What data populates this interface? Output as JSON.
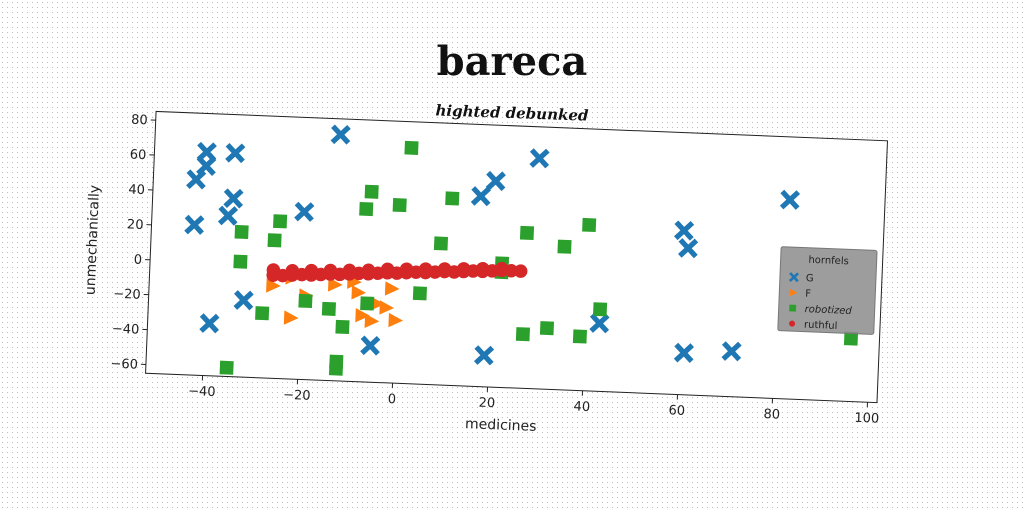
{
  "chart_data": {
    "type": "scatter",
    "title": "bareca",
    "subtitle": "highted debunked",
    "xlabel": "medicines",
    "ylabel": "unmechanically",
    "xlim": [
      -52,
      102
    ],
    "ylim": [
      -65,
      85
    ],
    "x_ticks": [
      -40,
      -20,
      0,
      20,
      40,
      60,
      80,
      100
    ],
    "y_ticks": [
      -60,
      -40,
      -20,
      0,
      20,
      40,
      60,
      80
    ],
    "grid": false,
    "legend": {
      "title": "hornfels",
      "placement": "right"
    },
    "series": [
      {
        "name": "G",
        "color": "#1f77b4",
        "marker": "x",
        "points": [
          [
            -41,
            63
          ],
          [
            -41,
            55
          ],
          [
            -43,
            47
          ],
          [
            -35,
            63
          ],
          [
            -35,
            37
          ],
          [
            -36,
            27
          ],
          [
            -43,
            21
          ],
          [
            -13,
            76
          ],
          [
            -20,
            31
          ],
          [
            -32,
            -21
          ],
          [
            -39,
            -35
          ],
          [
            -5,
            -44
          ],
          [
            29,
            67
          ],
          [
            20,
            53
          ],
          [
            17,
            44
          ],
          [
            43,
            -26
          ],
          [
            19,
            -47
          ],
          [
            60,
            29
          ],
          [
            61,
            19
          ],
          [
            61,
            -41
          ],
          [
            71,
            -39
          ],
          [
            82,
            49
          ]
        ]
      },
      {
        "name": "F",
        "color": "#ff7f0e",
        "marker": "triangle",
        "points": [
          [
            -26,
            -12
          ],
          [
            -22,
            -7
          ],
          [
            -19,
            -17
          ],
          [
            -22,
            -30
          ],
          [
            -13,
            -10
          ],
          [
            -9,
            -8
          ],
          [
            -8,
            -14
          ],
          [
            -7,
            -27
          ],
          [
            -5,
            -30
          ],
          [
            -4,
            -20
          ],
          [
            -2,
            -22
          ],
          [
            -1,
            -11
          ],
          [
            0,
            -29
          ]
        ]
      },
      {
        "name": "robotized",
        "color": "#2ca02c",
        "marker": "square",
        "points": [
          [
            2,
            70
          ],
          [
            -6,
            44
          ],
          [
            -7,
            34
          ],
          [
            0,
            37
          ],
          [
            11,
            42
          ],
          [
            -33,
            18
          ],
          [
            -25,
            25
          ],
          [
            -26,
            14
          ],
          [
            -33,
            1
          ],
          [
            -28,
            -28
          ],
          [
            -19,
            -20
          ],
          [
            -14,
            -24
          ],
          [
            -11,
            -34
          ],
          [
            -12,
            -54
          ],
          [
            -12,
            -58
          ],
          [
            -35,
            -60
          ],
          [
            -6,
            -20
          ],
          [
            5,
            -13
          ],
          [
            9,
            16
          ],
          [
            22,
            6
          ],
          [
            22,
            1
          ],
          [
            27,
            24
          ],
          [
            35,
            17
          ],
          [
            40,
            30
          ],
          [
            43,
            -18
          ],
          [
            27,
            -34
          ],
          [
            32,
            -30
          ],
          [
            39,
            -34
          ],
          [
            96,
            -29
          ]
        ]
      },
      {
        "name": "ruthful",
        "color": "#d62728",
        "marker": "circle",
        "points": [
          [
            -26,
            -6
          ],
          [
            -24,
            -6
          ],
          [
            -22,
            -5.5
          ],
          [
            -20,
            -5
          ],
          [
            -18,
            -5
          ],
          [
            -16,
            -4.5
          ],
          [
            -14,
            -4
          ],
          [
            -12,
            -4
          ],
          [
            -10,
            -3.5
          ],
          [
            -8,
            -3
          ],
          [
            -6,
            -3
          ],
          [
            -4,
            -2.5
          ],
          [
            -2,
            -2
          ],
          [
            0,
            -2
          ],
          [
            2,
            -1.5
          ],
          [
            4,
            -1
          ],
          [
            6,
            -1
          ],
          [
            8,
            -0.5
          ],
          [
            10,
            0
          ],
          [
            12,
            0
          ],
          [
            14,
            0.5
          ],
          [
            16,
            1
          ],
          [
            18,
            1
          ],
          [
            20,
            1.5
          ],
          [
            22,
            2
          ],
          [
            24,
            2
          ],
          [
            26,
            2
          ],
          [
            -26,
            -3
          ],
          [
            -22,
            -3
          ],
          [
            -18,
            -2.5
          ],
          [
            -14,
            -2
          ],
          [
            -10,
            -1.5
          ],
          [
            -6,
            -1
          ],
          [
            -2,
            0
          ],
          [
            2,
            0.5
          ],
          [
            6,
            1
          ],
          [
            10,
            1.5
          ],
          [
            14,
            2
          ],
          [
            18,
            2.5
          ],
          [
            22,
            3
          ]
        ]
      }
    ]
  }
}
